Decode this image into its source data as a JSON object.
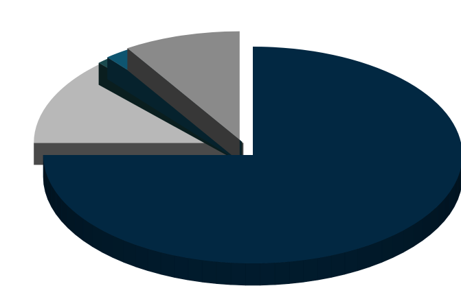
{
  "chart_data": {
    "type": "pie",
    "style": "3d-exploded",
    "title": "",
    "slices": [
      {
        "label": "",
        "value": 75.0,
        "color": "#022842",
        "exploded": false
      },
      {
        "label": "",
        "value": 13.0,
        "color": "#b8b8b8",
        "exploded": true
      },
      {
        "label": "",
        "value": 1.0,
        "color": "#1a4a4e",
        "exploded": true
      },
      {
        "label": "",
        "value": 2.0,
        "color": "#0e5570",
        "exploded": true
      },
      {
        "label": "",
        "value": 9.0,
        "color": "#8a8a8a",
        "exploded": true
      }
    ],
    "legend": "none",
    "data_labels": "none"
  }
}
